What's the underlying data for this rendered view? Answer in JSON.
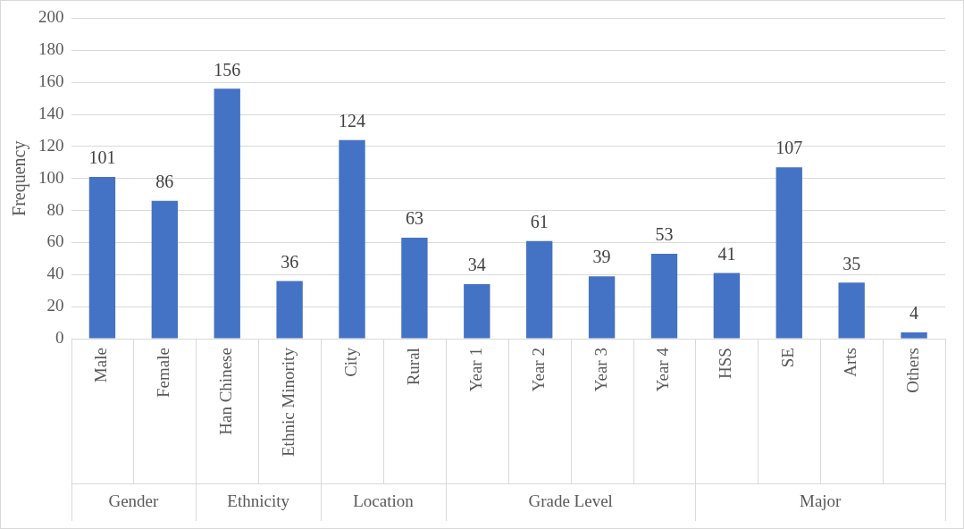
{
  "chart_data": {
    "type": "bar",
    "ylabel": "Frequency",
    "categories": [
      "Male",
      "Female",
      "Han Chinese",
      "Ethnic Minority",
      "City",
      "Rural",
      "Year 1",
      "Year 2",
      "Year 3",
      "Year 4",
      "HSS",
      "SE",
      "Arts",
      "Others"
    ],
    "values": [
      101,
      86,
      156,
      36,
      124,
      63,
      34,
      61,
      39,
      53,
      41,
      107,
      35,
      4
    ],
    "color": "#4472c4",
    "ylim": [
      0,
      200
    ],
    "yticks": [
      0,
      20,
      40,
      60,
      80,
      100,
      120,
      140,
      160,
      180,
      200
    ],
    "grid": "y",
    "data_labels": true,
    "legend": false,
    "annotations": [
      "Gender",
      "Ethnicity",
      "Location",
      "Grade Level",
      "Major"
    ]
  }
}
